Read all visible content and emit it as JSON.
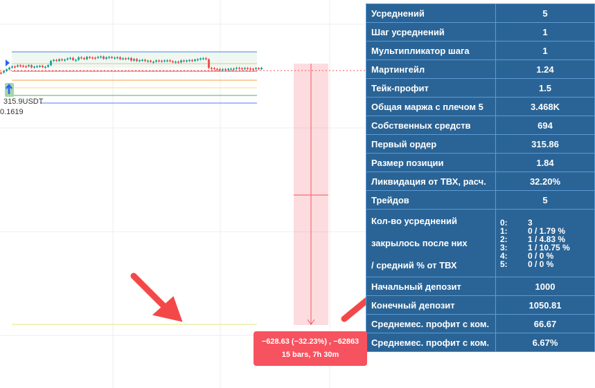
{
  "chart": {
    "price_label": "315.9USDT",
    "price_label2": "0.1619",
    "colors": {
      "up": "#26a69a",
      "down": "#ef5350",
      "accent": "#f7525f"
    }
  },
  "measure": {
    "line1": "−628.63 (−32.23%) , −62863",
    "line2": "15 bars, 7h 30m"
  },
  "table": {
    "rows": [
      {
        "label": "Усреднений",
        "value": "5"
      },
      {
        "label": "Шаг усреднений",
        "value": "1"
      },
      {
        "label": "Мультипликатор шага",
        "value": "1"
      },
      {
        "label": "Мартингейл",
        "value": "1.24"
      },
      {
        "label": "Тейк-профит",
        "value": "1.5"
      },
      {
        "label": "Общая маржа с плечом 5",
        "value": "3.468K"
      },
      {
        "label": "Собственных средств",
        "value": "694"
      },
      {
        "label": "Первый ордер",
        "value": "315.86"
      },
      {
        "label": "Размер позиции",
        "value": "1.84"
      },
      {
        "label": "Ликвидация от ТВХ, расч.",
        "value": "32.20%"
      },
      {
        "label": "Трейдов",
        "value": "5"
      }
    ],
    "multi": {
      "labels": [
        "Кол-во усреднений",
        "закрылось после них",
        "/ средний % от ТВХ"
      ],
      "levels": [
        {
          "k": "0:",
          "v": "3"
        },
        {
          "k": "1:",
          "v": "0 / 1.79 %"
        },
        {
          "k": "2:",
          "v": "1 / 4.83 %"
        },
        {
          "k": "3:",
          "v": "1 / 10.75 %"
        },
        {
          "k": "4:",
          "v": "0 / 0 %"
        },
        {
          "k": "5:",
          "v": "0 / 0 %"
        }
      ]
    },
    "rows2": [
      {
        "label": "Начальный депозит",
        "value": "1000"
      },
      {
        "label": "Конечный депозит",
        "value": "1050.81"
      },
      {
        "label": "Среднемес. профит с ком.",
        "value": "66.67"
      },
      {
        "label": "Среднемес. профит с ком.",
        "value": "6.67%"
      }
    ]
  }
}
